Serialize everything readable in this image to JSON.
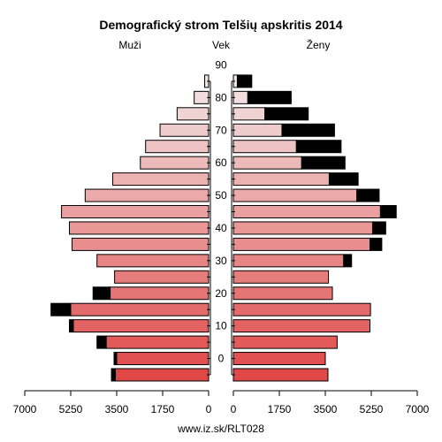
{
  "chart_data": {
    "type": "bar",
    "subtype": "population-pyramid",
    "title": "Demografický strom Telšių apskritis 2014",
    "left_label": "Muži",
    "center_label": "Vek",
    "right_label": "Ženy",
    "footer": "www.iz.sk/RLT028",
    "x_ticks_left": [
      "7000",
      "5250",
      "3500",
      "1750",
      "0"
    ],
    "x_ticks_right": [
      "0",
      "1750",
      "3500",
      "5250",
      "7000"
    ],
    "x_tick_values": [
      7000,
      5250,
      3500,
      1750,
      0
    ],
    "xlim": [
      0,
      7000
    ],
    "age_ticks": [
      "0",
      "10",
      "20",
      "30",
      "40",
      "50",
      "60",
      "70",
      "80",
      "90"
    ],
    "age_groups": [
      "0-4",
      "5-9",
      "10-14",
      "15-19",
      "20-24",
      "25-29",
      "30-34",
      "35-39",
      "40-44",
      "45-49",
      "50-54",
      "55-59",
      "60-64",
      "65-69",
      "70-74",
      "75-79",
      "80-84",
      "85-89",
      "90+"
    ],
    "series": [
      {
        "name": "Muži",
        "side": "left",
        "values": [
          3550,
          3500,
          3900,
          5150,
          5250,
          3750,
          3580,
          4250,
          5200,
          5300,
          5600,
          4700,
          3650,
          2600,
          2400,
          1850,
          1200,
          550,
          150
        ],
        "excess": [
          150,
          100,
          350,
          150,
          750,
          650,
          0,
          0,
          0,
          0,
          0,
          0,
          0,
          0,
          0,
          0,
          0,
          0,
          0
        ]
      },
      {
        "name": "Ženy",
        "side": "right",
        "values": [
          3600,
          3500,
          3950,
          5200,
          5220,
          3770,
          3620,
          4200,
          5200,
          5300,
          5600,
          4700,
          3650,
          2600,
          2400,
          1850,
          1200,
          550,
          150
        ],
        "excess": [
          0,
          0,
          0,
          0,
          0,
          0,
          0,
          300,
          450,
          500,
          600,
          850,
          1100,
          1650,
          1700,
          2000,
          1650,
          1650,
          550
        ]
      }
    ]
  },
  "colors": {
    "excess": "#000000",
    "bar_outline": "#000000",
    "bottom": "#e04848",
    "top": "#f2e6e6"
  }
}
